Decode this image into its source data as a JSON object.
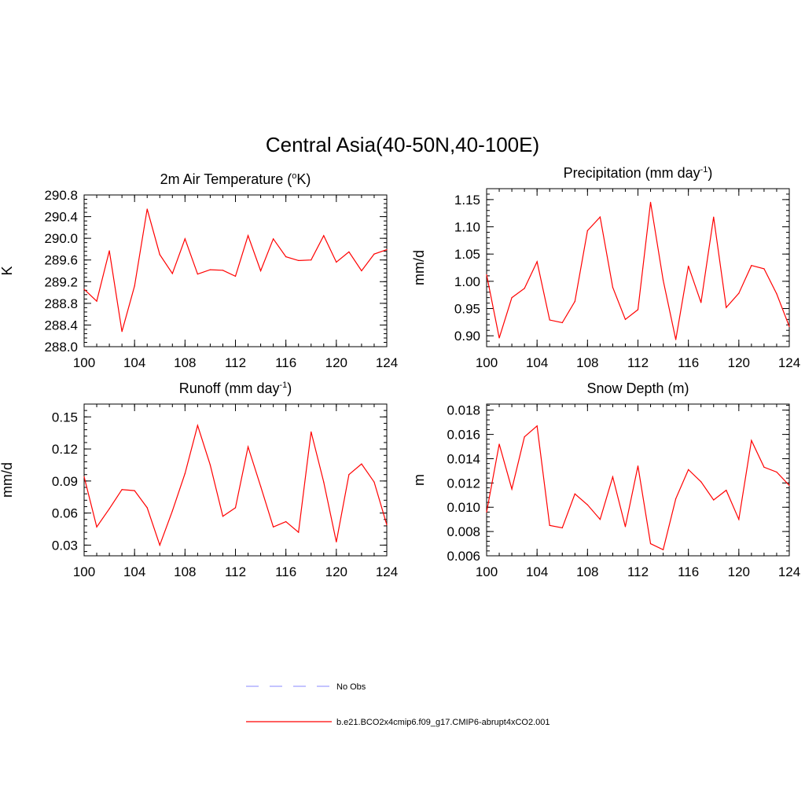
{
  "figure": {
    "title": "Central Asia(40-50N,40-100E)"
  },
  "colors": {
    "series": "#ff0000",
    "obs": "#a0a0ff",
    "axis": "#000000",
    "background": "#ffffff"
  },
  "legend": {
    "items": [
      {
        "label": "No Obs",
        "style": "dashed",
        "color": "#a0a0ff"
      },
      {
        "label": "b.e21.BCO2x4cmip6.f09_g17.CMIP6-abrupt4xCO2.001",
        "style": "solid",
        "color": "#ff0000"
      }
    ]
  },
  "chart_data": [
    {
      "type": "line",
      "title": "2m Air Temperature (",
      "title_sup": "o",
      "title_after": "K)",
      "ylabel": "K",
      "xlim": [
        100,
        124
      ],
      "ylim": [
        288.0,
        290.8
      ],
      "xticks": [
        "100",
        "104",
        "108",
        "112",
        "116",
        "120",
        "124"
      ],
      "yticks": [
        "288.0",
        "288.4",
        "288.8",
        "289.2",
        "289.6",
        "290.0",
        "290.4",
        "290.8"
      ],
      "ytick_values": [
        288.0,
        288.4,
        288.8,
        289.2,
        289.6,
        290.0,
        290.4,
        290.8
      ],
      "x": [
        100,
        101,
        102,
        103,
        104,
        105,
        106,
        107,
        108,
        109,
        110,
        111,
        112,
        113,
        114,
        115,
        116,
        117,
        118,
        119,
        120,
        121,
        122,
        123,
        124
      ],
      "values": [
        289.06,
        288.84,
        289.77,
        288.28,
        289.12,
        290.54,
        289.7,
        289.35,
        289.99,
        289.34,
        289.42,
        289.41,
        289.3,
        290.05,
        289.4,
        289.99,
        289.66,
        289.59,
        289.6,
        290.05,
        289.56,
        289.75,
        289.4,
        289.71,
        289.79
      ]
    },
    {
      "type": "line",
      "title": "Precipitation (mm day",
      "title_sup": "-1",
      "title_after": ")",
      "ylabel": "mm/d",
      "xlim": [
        100,
        124
      ],
      "ylim": [
        0.88,
        1.17
      ],
      "xticks": [
        "100",
        "104",
        "108",
        "112",
        "116",
        "120",
        "124"
      ],
      "yticks": [
        "0.90",
        "0.95",
        "1.00",
        "1.05",
        "1.10",
        "1.15"
      ],
      "ytick_values": [
        0.9,
        0.95,
        1.0,
        1.05,
        1.1,
        1.15
      ],
      "x": [
        100,
        101,
        102,
        103,
        104,
        105,
        106,
        107,
        108,
        109,
        110,
        111,
        112,
        113,
        114,
        115,
        116,
        117,
        118,
        119,
        120,
        121,
        122,
        123,
        124
      ],
      "values": [
        1.012,
        0.896,
        0.97,
        0.987,
        1.036,
        0.929,
        0.924,
        0.963,
        1.093,
        1.118,
        0.989,
        0.93,
        0.948,
        1.145,
        1.002,
        0.893,
        1.028,
        0.961,
        1.118,
        0.952,
        0.978,
        1.029,
        1.023,
        0.977,
        0.917
      ]
    },
    {
      "type": "line",
      "title": "Runoff (mm day",
      "title_sup": "-1",
      "title_after": ")",
      "ylabel": "mm/d",
      "xlim": [
        100,
        124
      ],
      "ylim": [
        0.02,
        0.162
      ],
      "xticks": [
        "100",
        "104",
        "108",
        "112",
        "116",
        "120",
        "124"
      ],
      "yticks": [
        "0.03",
        "0.06",
        "0.09",
        "0.12",
        "0.15"
      ],
      "ytick_values": [
        0.03,
        0.06,
        0.09,
        0.12,
        0.15
      ],
      "x": [
        100,
        101,
        102,
        103,
        104,
        105,
        106,
        107,
        108,
        109,
        110,
        111,
        112,
        113,
        114,
        115,
        116,
        117,
        118,
        119,
        120,
        121,
        122,
        123,
        124
      ],
      "values": [
        0.094,
        0.047,
        0.064,
        0.082,
        0.081,
        0.065,
        0.03,
        0.062,
        0.097,
        0.142,
        0.105,
        0.057,
        0.065,
        0.122,
        0.085,
        0.047,
        0.052,
        0.042,
        0.136,
        0.089,
        0.033,
        0.096,
        0.106,
        0.089,
        0.049
      ]
    },
    {
      "type": "line",
      "title": "Snow Depth (m)",
      "title_sup": "",
      "title_after": "",
      "ylabel": "m",
      "xlim": [
        100,
        124
      ],
      "ylim": [
        0.006,
        0.0185
      ],
      "xticks": [
        "100",
        "104",
        "108",
        "112",
        "116",
        "120",
        "124"
      ],
      "yticks": [
        "0.006",
        "0.008",
        "0.010",
        "0.012",
        "0.014",
        "0.016",
        "0.018"
      ],
      "ytick_values": [
        0.006,
        0.008,
        0.01,
        0.012,
        0.014,
        0.016,
        0.018
      ],
      "x": [
        100,
        101,
        102,
        103,
        104,
        105,
        106,
        107,
        108,
        109,
        110,
        111,
        112,
        113,
        114,
        115,
        116,
        117,
        118,
        119,
        120,
        121,
        122,
        123,
        124
      ],
      "values": [
        0.0096,
        0.0152,
        0.0115,
        0.0158,
        0.0167,
        0.0085,
        0.0083,
        0.0111,
        0.0102,
        0.009,
        0.0125,
        0.0084,
        0.0134,
        0.007,
        0.0065,
        0.0107,
        0.0131,
        0.0121,
        0.0106,
        0.0114,
        0.009,
        0.0155,
        0.0133,
        0.0129,
        0.0118
      ]
    }
  ]
}
